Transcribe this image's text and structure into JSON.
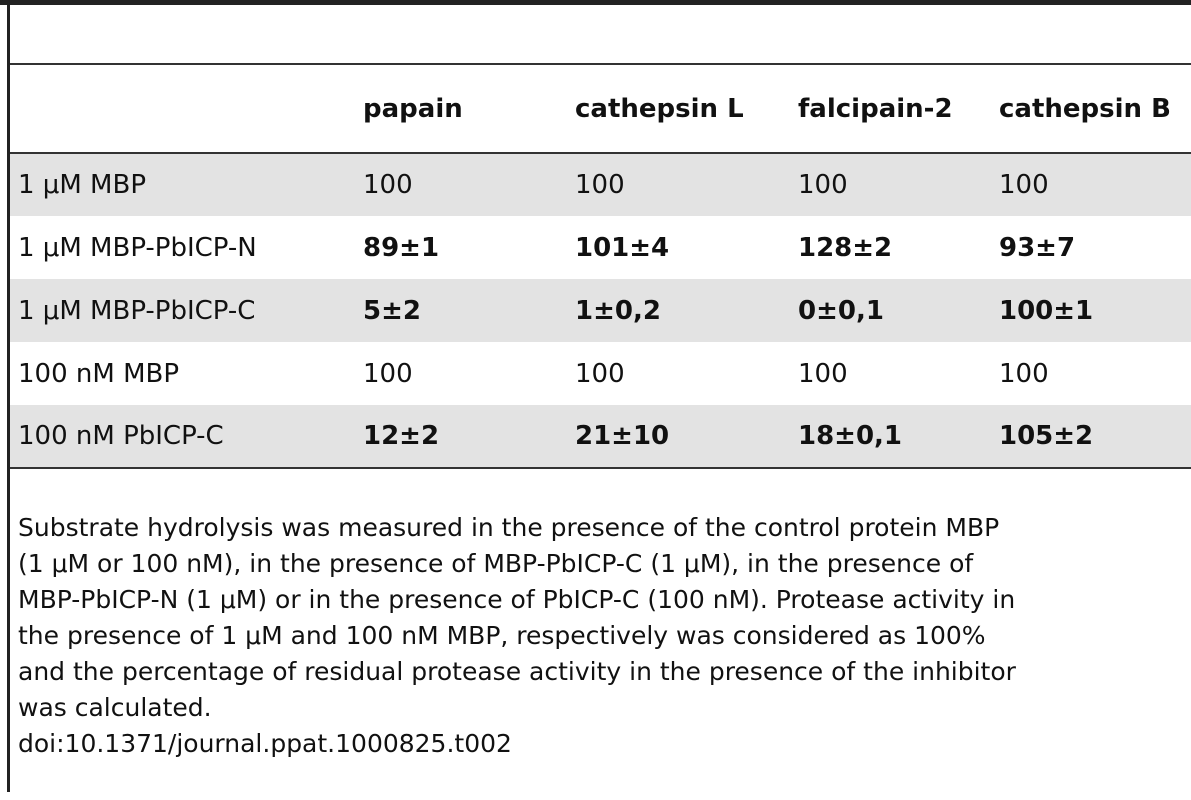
{
  "table": {
    "columns": [
      "papain",
      "cathepsin L",
      "falcipain-2",
      "cathepsin B"
    ],
    "rows": [
      [
        "1 μM MBP",
        "100",
        "100",
        "100",
        "100"
      ],
      [
        "1 μM MBP-PbICP-N",
        "89±1",
        "101±4",
        "128±2",
        "93±7"
      ],
      [
        "1 μM MBP-PbICP-C",
        "5±2",
        "1±0,2",
        "0±0,1",
        "100±1"
      ],
      [
        "100 nM MBP",
        "100",
        "100",
        "100",
        "100"
      ],
      [
        "100 nM PbICP-C",
        "12±2",
        "21±10",
        "18±0,1",
        "105±2"
      ]
    ]
  },
  "caption": [
    "Substrate hydrolysis was measured in the presence of the control protein MBP",
    "(1 μM or 100 nM), in the presence of MBP-PbICP-C (1 μM), in the presence of",
    "MBP-PbICP-N (1 μM) or in the presence of PbICP-C (100 nM). Protease activity in",
    "the presence of 1 μM and 100 nM MBP, respectively was considered as 100%",
    "and the percentage of residual protease activity in the presence of the inhibitor",
    "was calculated."
  ],
  "doi": "doi:10.1371/journal.ppat.1000825.t002"
}
